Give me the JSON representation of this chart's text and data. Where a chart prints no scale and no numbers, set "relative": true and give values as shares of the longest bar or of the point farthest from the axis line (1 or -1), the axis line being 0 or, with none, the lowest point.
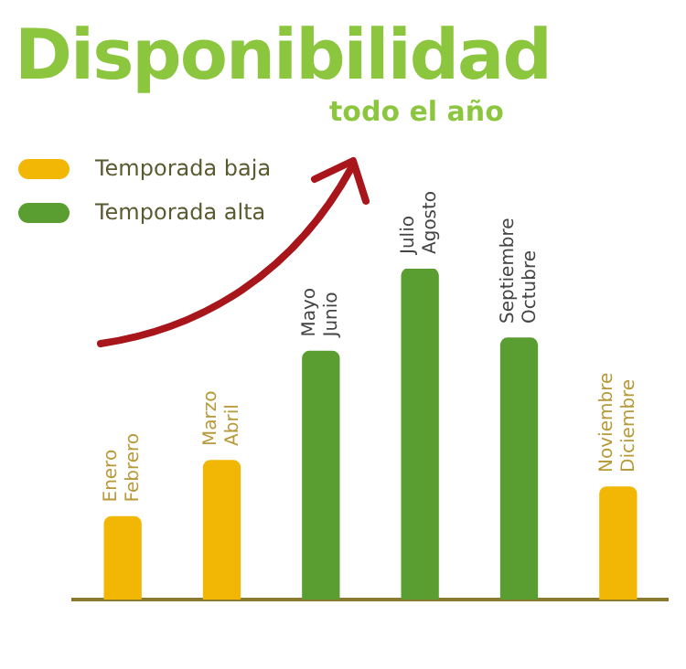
{
  "chart_data": {
    "type": "bar",
    "title": "Disponibilidad",
    "subtitle": "todo el año",
    "relative": true,
    "categories": [
      "Enero Febrero",
      "Marzo Abril",
      "Mayo Junio",
      "Julio Agosto",
      "Septiembre Octubre",
      "Noviembre Diciembre"
    ],
    "series": [
      {
        "name": "Temporada baja",
        "color": "#f2b705",
        "values": [
          0.25,
          0.42,
          null,
          null,
          null,
          0.34
        ]
      },
      {
        "name": "Temporada alta",
        "color": "#5a9e32",
        "values": [
          null,
          null,
          0.75,
          1,
          0.79,
          null
        ]
      }
    ],
    "legend": "top left",
    "grid": false
  }
}
